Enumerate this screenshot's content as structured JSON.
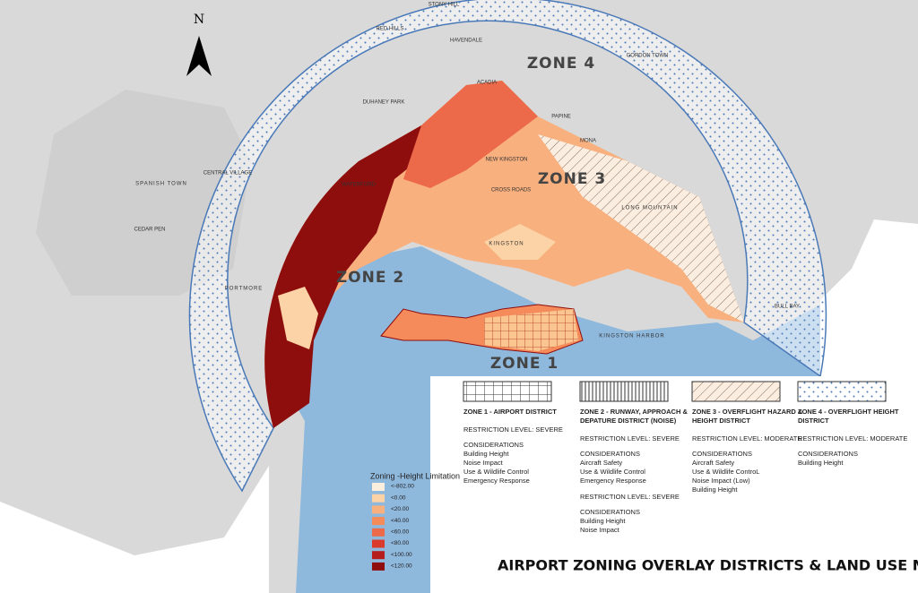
{
  "compass": "N",
  "place_labels": [
    "STONY HILL",
    "RED HILLS",
    "HAVENDALE",
    "GORDON TOWN",
    "ACADIA",
    "DUHANEY PARK",
    "PAPINE",
    "MONA",
    "SPANISH TOWN",
    "CENTRAL VILLAGE",
    "CEDAR PEN",
    "NEW KINGSTON",
    "CROSS ROADS",
    "WATERFORD",
    "KINGSTON",
    "LONG MOUNTAIN",
    "PORTMORE",
    "KINGSTON HARBOR",
    "BULL BAY"
  ],
  "zone_labels": [
    "ZONE 4",
    "ZONE 3",
    "ZONE 2",
    "ZONE 1"
  ],
  "height_legend": {
    "title": "Zoning -Height Limitation",
    "items": [
      {
        "label": "<-802.00",
        "color": "#fdeedd"
      },
      {
        "label": "<0.00",
        "color": "#fcd3a6"
      },
      {
        "label": "<20.00",
        "color": "#f9b07f"
      },
      {
        "label": "<40.00",
        "color": "#f58a5b"
      },
      {
        "label": "<60.00",
        "color": "#ec6a4a"
      },
      {
        "label": "<80.00",
        "color": "#d93a2c"
      },
      {
        "label": "<100.00",
        "color": "#b51c1c"
      },
      {
        "label": "<120.00",
        "color": "#8e0d0d"
      }
    ]
  },
  "zones": [
    {
      "title": "ZONE 1 -  AIRPORT DISTRICT",
      "blocks": [
        {
          "restriction": "RESTRICTION LEVEL: SEVERE",
          "considerations_title": "CONSIDERATIONS",
          "considerations": [
            "Building Height",
            "Noise Impact",
            "Use & Wildlife Control",
            "Emergency Response"
          ]
        }
      ]
    },
    {
      "title": "ZONE 2 - RUNWAY, APPROACH & DEPATURE DISTRICT (NOISE)",
      "blocks": [
        {
          "restriction": "RESTRICTION LEVEL: SEVERE",
          "considerations_title": "CONSIDERATIONS",
          "considerations": [
            "Aircraft Safety",
            "Use & Wildlife Control",
            "Emergency Response"
          ]
        },
        {
          "restriction": "RESTRICTION LEVEL: SEVERE",
          "considerations_title": "CONSIDERATIONS",
          "considerations": [
            "Building Height",
            "Noise Impact"
          ]
        }
      ]
    },
    {
      "title": "ZONE 3 - OVERFLIGHT HAZARD & HEIGHT DISTRICT",
      "blocks": [
        {
          "restriction": "RESTRICTION LEVEL: MODERATE",
          "considerations_title": "CONSIDERATIONS",
          "considerations": [
            "Aircraft Safety",
            "Use & Wildlife ControL",
            "Noise Impact (Low)",
            "Building Height"
          ]
        }
      ]
    },
    {
      "title": "ZONE 4 - OVERFLIGHT HEIGHT DISTRICT",
      "blocks": [
        {
          "restriction": "RESTRICTION LEVEL: MODERATE",
          "considerations_title": "CONSIDERATIONS",
          "considerations": [
            "Building Height"
          ]
        }
      ]
    }
  ],
  "title": "AIRPORT ZONING OVERLAY DISTRICTS & LAND USE MAP"
}
